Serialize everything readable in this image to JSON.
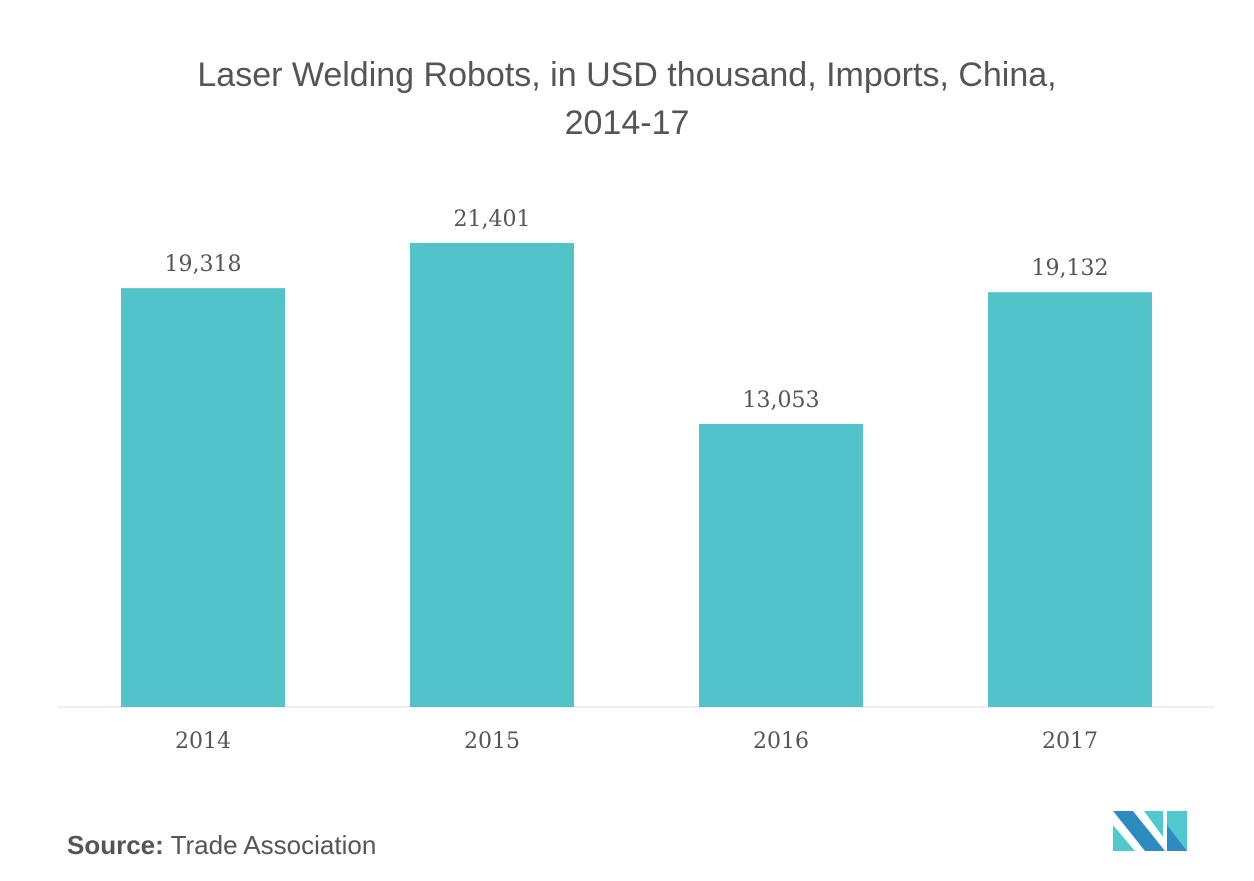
{
  "chart_data": {
    "type": "bar",
    "title_line1": "Laser Welding Robots, in USD thousand, Imports, China,",
    "title_line2": "2014-17",
    "categories": [
      "2014",
      "2015",
      "2016",
      "2017"
    ],
    "values": [
      19318,
      21401,
      13053,
      19132
    ],
    "value_labels": [
      "19,318",
      "21,401",
      "13,053",
      "19,132"
    ],
    "xlabel": "",
    "ylabel": "",
    "ylim": [
      0,
      21401
    ],
    "grid": false,
    "bar_color": "#51C3C9"
  },
  "source": {
    "label": "Source:",
    "text": "Trade Association"
  },
  "logo": {
    "colors": [
      "#2E8BC0",
      "#4FC9CE"
    ]
  }
}
